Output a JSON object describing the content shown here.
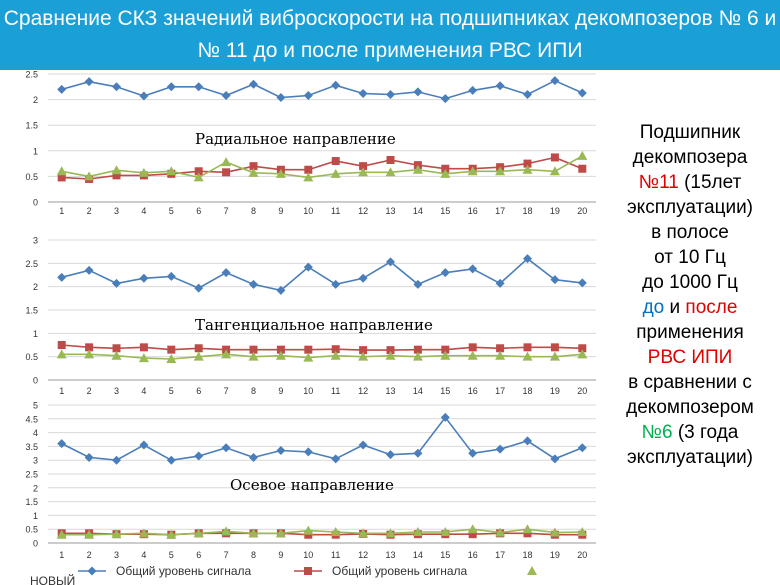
{
  "header": {
    "line1": "Сравнение СКЗ значений виброскорости на подшипниках декомпозеров № 6 и",
    "line2": "№ 11 до и после применения РВС ИПИ"
  },
  "sidebar": {
    "l1": "Подшипник",
    "l2": "декомпозера",
    "l3a": "№11",
    "l3b": " (15лет",
    "l4": "эксплуатации)",
    "l5": "в полосе",
    "l6": "от 10 Гц",
    "l7": "до 1000 Гц",
    "l8a": "до",
    "l8b": " и ",
    "l8c": "после",
    "l9": "применения",
    "l10": "РВС ИПИ",
    "l11": "в сравнении с",
    "l12": "декомпозером",
    "l13a": "№6",
    "l13b": " (3 года",
    "l14": "эксплуатации)"
  },
  "colors": {
    "blue": "#4a7ebb",
    "red": "#be4b48",
    "green": "#98b954"
  },
  "legend": {
    "s1": "Общий уровень сигнала",
    "s2": "Общий уровень сигнала",
    "s3": "новый"
  },
  "chart_data": [
    {
      "type": "line",
      "title": "Радиальное направление",
      "x": [
        1,
        2,
        3,
        4,
        5,
        6,
        7,
        8,
        9,
        10,
        11,
        12,
        13,
        14,
        15,
        16,
        17,
        18,
        19,
        20
      ],
      "ylim": [
        0,
        2.5
      ],
      "yticks": [
        0,
        0.5,
        1,
        1.5,
        2,
        2.5
      ],
      "series": [
        {
          "name": "Общий уровень сигнала",
          "values": [
            2.2,
            2.35,
            2.25,
            2.07,
            2.25,
            2.25,
            2.08,
            2.3,
            2.04,
            2.08,
            2.28,
            2.12,
            2.1,
            2.15,
            2.02,
            2.18,
            2.27,
            2.1,
            2.37,
            2.13
          ]
        },
        {
          "name": "Общий уровень сигнала",
          "values": [
            0.48,
            0.45,
            0.52,
            0.52,
            0.55,
            0.6,
            0.58,
            0.7,
            0.63,
            0.63,
            0.8,
            0.7,
            0.82,
            0.72,
            0.65,
            0.65,
            0.68,
            0.75,
            0.87,
            0.65
          ]
        },
        {
          "name": "новый",
          "values": [
            0.6,
            0.5,
            0.62,
            0.57,
            0.6,
            0.48,
            0.78,
            0.57,
            0.55,
            0.48,
            0.55,
            0.58,
            0.58,
            0.63,
            0.55,
            0.6,
            0.6,
            0.63,
            0.6,
            0.9
          ]
        }
      ]
    },
    {
      "type": "line",
      "title": "Тангенциальное направление",
      "x": [
        1,
        2,
        3,
        4,
        5,
        6,
        7,
        8,
        9,
        10,
        11,
        12,
        13,
        14,
        15,
        16,
        17,
        18,
        19,
        20
      ],
      "ylim": [
        0,
        3
      ],
      "yticks": [
        0,
        0.5,
        1,
        1.5,
        2,
        2.5,
        3
      ],
      "series": [
        {
          "name": "Общий уровень сигнала",
          "values": [
            2.2,
            2.35,
            2.07,
            2.18,
            2.22,
            1.97,
            2.3,
            2.05,
            1.92,
            2.42,
            2.05,
            2.18,
            2.53,
            2.05,
            2.3,
            2.38,
            2.07,
            2.6,
            2.15,
            2.08
          ]
        },
        {
          "name": "Общий уровень сигнала",
          "values": [
            0.75,
            0.7,
            0.68,
            0.7,
            0.65,
            0.68,
            0.65,
            0.65,
            0.65,
            0.65,
            0.66,
            0.64,
            0.64,
            0.65,
            0.65,
            0.7,
            0.68,
            0.7,
            0.7,
            0.68
          ]
        },
        {
          "name": "новый",
          "values": [
            0.55,
            0.55,
            0.52,
            0.47,
            0.45,
            0.5,
            0.55,
            0.5,
            0.52,
            0.48,
            0.52,
            0.5,
            0.52,
            0.5,
            0.52,
            0.52,
            0.52,
            0.5,
            0.5,
            0.55
          ]
        }
      ]
    },
    {
      "type": "line",
      "title": "Осевое направление",
      "x": [
        1,
        2,
        3,
        4,
        5,
        6,
        7,
        8,
        9,
        10,
        11,
        12,
        13,
        14,
        15,
        16,
        17,
        18,
        19,
        20
      ],
      "ylim": [
        0,
        5
      ],
      "yticks": [
        0,
        0.5,
        1,
        1.5,
        2,
        2.5,
        3,
        3.5,
        4,
        4.5,
        5
      ],
      "series": [
        {
          "name": "Общий уровень сигнала",
          "values": [
            3.6,
            3.1,
            3.0,
            3.55,
            3.0,
            3.15,
            3.45,
            3.1,
            3.35,
            3.3,
            3.05,
            3.55,
            3.2,
            3.25,
            4.55,
            3.25,
            3.4,
            3.7,
            3.05,
            3.45
          ]
        },
        {
          "name": "Общий уровень сигнала",
          "values": [
            0.35,
            0.35,
            0.32,
            0.32,
            0.3,
            0.35,
            0.35,
            0.35,
            0.35,
            0.3,
            0.3,
            0.33,
            0.3,
            0.32,
            0.32,
            0.32,
            0.35,
            0.35,
            0.3,
            0.3
          ]
        },
        {
          "name": "новый",
          "values": [
            0.3,
            0.3,
            0.32,
            0.35,
            0.3,
            0.35,
            0.42,
            0.35,
            0.35,
            0.45,
            0.4,
            0.35,
            0.35,
            0.4,
            0.4,
            0.5,
            0.38,
            0.5,
            0.38,
            0.4
          ]
        }
      ]
    }
  ]
}
